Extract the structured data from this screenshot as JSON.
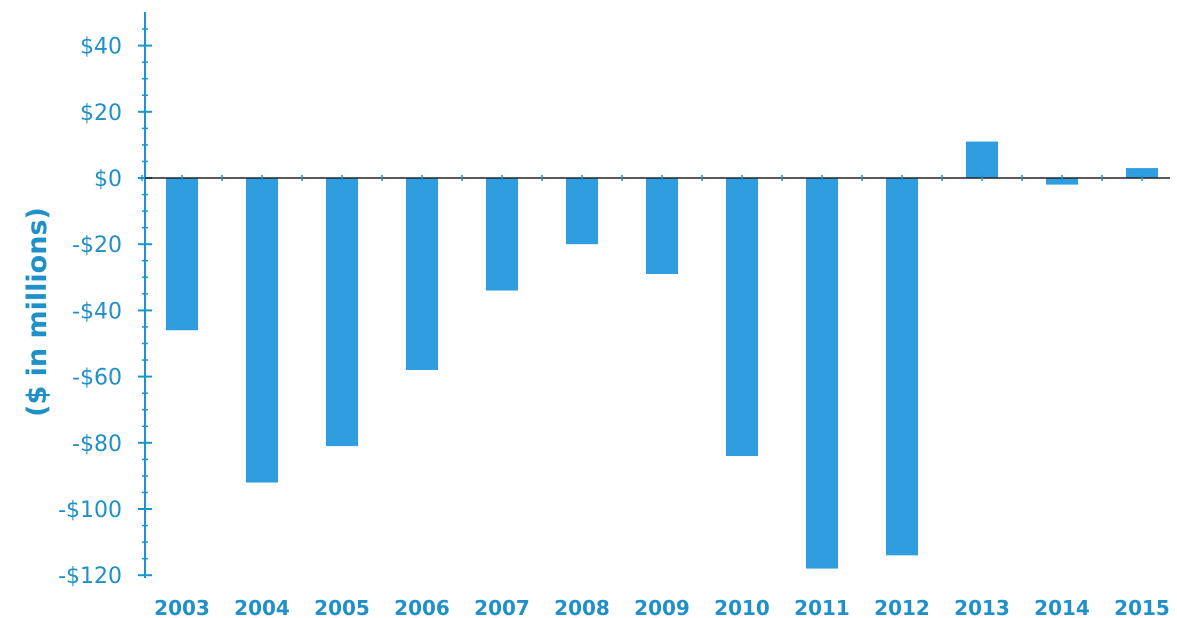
{
  "chart_data": {
    "type": "bar",
    "title": "",
    "xlabel": "",
    "ylabel": "($ in millions)",
    "categories": [
      "2003",
      "2004",
      "2005",
      "2006",
      "2007",
      "2008",
      "2009",
      "2010",
      "2011",
      "2012",
      "2013",
      "2014",
      "2015"
    ],
    "values": [
      -46,
      -92,
      -81,
      -58,
      -34,
      -20,
      -29,
      -84,
      -118,
      -114,
      11,
      -2,
      3
    ],
    "ylim": [
      -120,
      45
    ],
    "yticks": [
      40,
      20,
      0,
      -20,
      -40,
      -60,
      -80,
      -100,
      -120
    ],
    "ytick_labels": [
      "$40",
      "$20",
      "$0",
      "-$20",
      "-$40",
      "-$60",
      "-$80",
      "-$100",
      "-$120"
    ],
    "grid": false,
    "legend": "none",
    "colors": {
      "bar": "#2e9ee0",
      "axis": "#1b95d1",
      "text": "#1f90c8"
    }
  }
}
